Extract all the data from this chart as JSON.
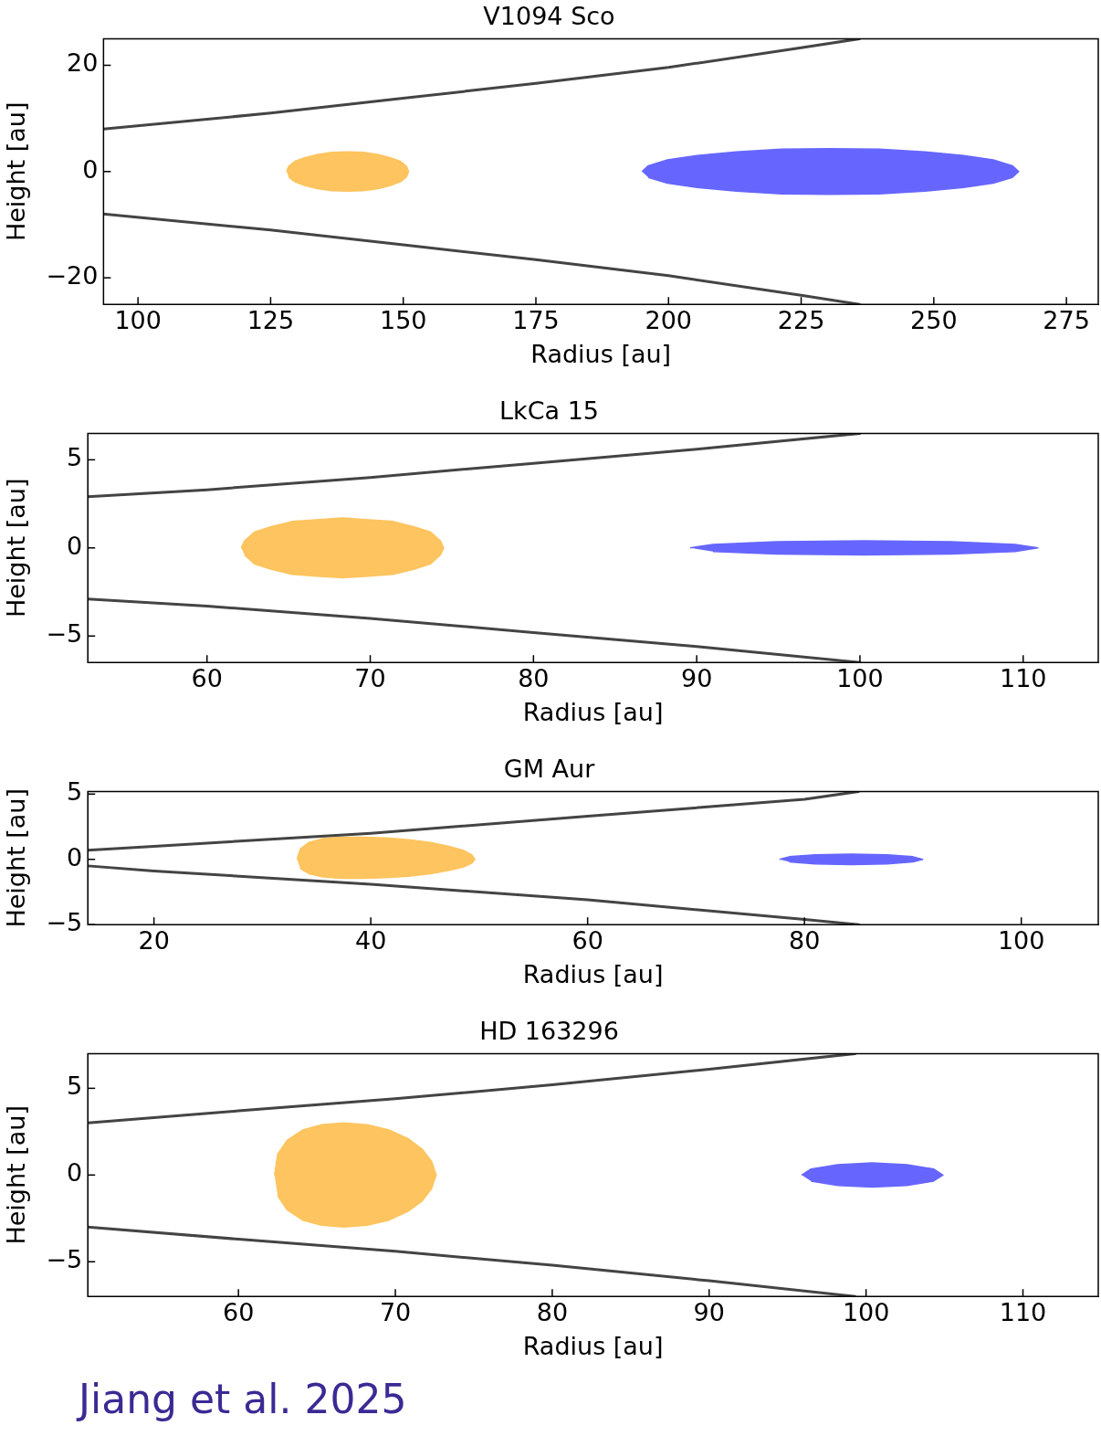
{
  "chart_data": [
    {
      "type": "line",
      "title": "V1094 Sco",
      "xlabel": "Radius [au]",
      "ylabel": "Height [au]",
      "xlim": [
        93.5,
        281
      ],
      "xticks": [
        100,
        125,
        150,
        175,
        200,
        225,
        250,
        275
      ],
      "ylim": [
        -25,
        25
      ],
      "yticks": [
        -20,
        0,
        20
      ],
      "grid": false,
      "series": [
        {
          "type": "line",
          "color": "#444444",
          "x": [
            93.5,
            125,
            150,
            175,
            200,
            225,
            236
          ],
          "values": [
            8,
            11,
            13.8,
            16.6,
            19.6,
            23.3,
            25
          ]
        },
        {
          "type": "line",
          "color": "#444444",
          "x": [
            93.5,
            125,
            150,
            175,
            200,
            225,
            236
          ],
          "values": [
            -8,
            -11,
            -13.8,
            -16.6,
            -19.6,
            -23.3,
            -25
          ]
        },
        {
          "type": "area",
          "color": "#fdc45f",
          "x": [
            128,
            128.4,
            129.5,
            131.4,
            133.8,
            136.5,
            139.5,
            142.5,
            145.3,
            147.6,
            149.5,
            150.6,
            151,
            150.6,
            149.5,
            147.6,
            145.3,
            142.5,
            139.5,
            136.5,
            133.8,
            131.4,
            129.5,
            128.4
          ],
          "values": [
            0,
            1,
            1.9,
            2.6,
            3.2,
            3.6,
            3.7,
            3.6,
            3.2,
            2.6,
            1.9,
            1,
            0,
            -1,
            -1.9,
            -2.6,
            -3.2,
            -3.6,
            -3.7,
            -3.6,
            -3.2,
            -2.6,
            -1.9,
            -1
          ]
        },
        {
          "type": "area",
          "color": "#6666ff",
          "x": [
            195,
            196.2,
            199.8,
            205.4,
            212.8,
            221.3,
            230.5,
            239.7,
            248.3,
            255.6,
            261.2,
            264.8,
            266,
            264.8,
            261.2,
            255.6,
            248.3,
            239.7,
            230.5,
            221.3,
            212.8,
            205.4,
            199.8,
            196.2
          ],
          "values": [
            0,
            1.1,
            2.2,
            3,
            3.7,
            4.2,
            4.3,
            4.2,
            3.7,
            3,
            2.2,
            1.1,
            0,
            -1.1,
            -2.2,
            -3,
            -3.7,
            -4.2,
            -4.3,
            -4.2,
            -3.7,
            -3,
            -2.2,
            -1.1
          ]
        }
      ]
    },
    {
      "type": "line",
      "title": "LkCa 15",
      "xlabel": "Radius [au]",
      "ylabel": "Height [au]",
      "xlim": [
        52.7,
        114.6
      ],
      "xticks": [
        60,
        70,
        80,
        90,
        100,
        110
      ],
      "ylim": [
        -6.5,
        6.5
      ],
      "yticks": [
        -5,
        0,
        5
      ],
      "grid": false,
      "series": [
        {
          "type": "line",
          "color": "#444444",
          "x": [
            52.7,
            60,
            70,
            80,
            90,
            100
          ],
          "values": [
            2.9,
            3.3,
            4,
            4.8,
            5.6,
            6.5
          ]
        },
        {
          "type": "line",
          "color": "#444444",
          "x": [
            52.7,
            60,
            70,
            80,
            90,
            100
          ],
          "values": [
            -2.9,
            -3.3,
            -4,
            -4.8,
            -5.6,
            -6.5
          ]
        },
        {
          "type": "area",
          "color": "#fdc45f",
          "x": [
            62.1,
            62.3,
            62.9,
            63.9,
            65.2,
            66.7,
            68.3,
            69.9,
            71.4,
            72.7,
            73.7,
            74.3,
            74.5,
            74.3,
            73.7,
            72.7,
            71.4,
            69.9,
            68.3,
            66.7,
            65.2,
            63.9,
            62.9,
            62.3
          ],
          "values": [
            0,
            0.4,
            0.9,
            1.2,
            1.5,
            1.6,
            1.7,
            1.6,
            1.5,
            1.2,
            0.9,
            0.4,
            0,
            -0.4,
            -0.9,
            -1.2,
            -1.5,
            -1.6,
            -1.7,
            -1.6,
            -1.5,
            -1.2,
            -0.9,
            -0.4
          ]
        },
        {
          "type": "area",
          "color": "#6666ff",
          "x": [
            89.6,
            91,
            94.9,
            100.25,
            105.6,
            109.5,
            110.9,
            109.5,
            105.6,
            100.25,
            94.9,
            91
          ],
          "values": [
            0,
            0.2,
            0.35,
            0.4,
            0.35,
            0.2,
            0,
            -0.2,
            -0.35,
            -0.4,
            -0.35,
            -0.2
          ]
        }
      ]
    },
    {
      "type": "line",
      "title": "GM Aur",
      "xlabel": "Radius [au]",
      "ylabel": "Height [au]",
      "xlim": [
        13.9,
        107.1
      ],
      "xticks": [
        20,
        40,
        60,
        80,
        100
      ],
      "ylim": [
        -5,
        5.2
      ],
      "yticks": [
        -5,
        0,
        5
      ],
      "grid": false,
      "series": [
        {
          "type": "line",
          "color": "#444444",
          "x": [
            13.9,
            20,
            40,
            60,
            80,
            85
          ],
          "values": [
            0.7,
            1,
            2,
            3.3,
            4.6,
            5.2
          ]
        },
        {
          "type": "line",
          "color": "#444444",
          "x": [
            13.9,
            20,
            40,
            60,
            80,
            85
          ],
          "values": [
            -0.5,
            -0.9,
            -1.9,
            -3.1,
            -4.6,
            -5
          ]
        },
        {
          "type": "area",
          "color": "#fdc45f",
          "x": [
            33.2,
            33.5,
            34.3,
            35.6,
            37.3,
            39.3,
            41.4,
            43.5,
            45.5,
            47.2,
            48.5,
            49.3,
            49.6,
            49.3,
            48.5,
            47.2,
            45.5,
            43.5,
            41.4,
            39.3,
            37.3,
            35.6,
            34.3,
            33.5
          ],
          "values": [
            0,
            0.8,
            1.3,
            1.6,
            1.7,
            1.7,
            1.65,
            1.5,
            1.3,
            1,
            0.7,
            0.35,
            0,
            -0.3,
            -0.6,
            -0.85,
            -1.1,
            -1.3,
            -1.4,
            -1.45,
            -1.45,
            -1.35,
            -1.1,
            -0.7
          ]
        },
        {
          "type": "area",
          "color": "#6666ff",
          "x": [
            77.7,
            78.6,
            81,
            84.3,
            87.6,
            90,
            90.9,
            90,
            87.6,
            84.3,
            81,
            78.6
          ],
          "values": [
            0,
            0.2,
            0.35,
            0.4,
            0.35,
            0.2,
            0,
            -0.2,
            -0.35,
            -0.4,
            -0.35,
            -0.2
          ]
        }
      ]
    },
    {
      "type": "line",
      "title": "HD 163296",
      "xlabel": "Radius [au]",
      "ylabel": "Height [au]",
      "xlim": [
        50.4,
        114.8
      ],
      "xticks": [
        60,
        70,
        80,
        90,
        100,
        110
      ],
      "ylim": [
        -7,
        7
      ],
      "yticks": [
        -5,
        0,
        5
      ],
      "grid": false,
      "annotations": [
        "Jiang et al. 2025"
      ],
      "series": [
        {
          "type": "line",
          "color": "#444444",
          "x": [
            50.4,
            60,
            70,
            80,
            90,
            99.3
          ],
          "values": [
            3,
            3.7,
            4.4,
            5.2,
            6.1,
            7
          ]
        },
        {
          "type": "line",
          "color": "#444444",
          "x": [
            50.4,
            60,
            70,
            80,
            90,
            99.3
          ],
          "values": [
            -3,
            -3.7,
            -4.4,
            -5.2,
            -6.1,
            -7
          ]
        },
        {
          "type": "area",
          "color": "#fdc45f",
          "x": [
            62.3,
            62.5,
            63.1,
            64.1,
            65.3,
            66.7,
            68.2,
            69.6,
            70.8,
            71.7,
            72.3,
            72.6,
            72.3,
            71.7,
            70.8,
            69.6,
            68.2,
            66.7,
            65.3,
            64.1,
            63.1,
            62.5
          ],
          "values": [
            0,
            1.2,
            2,
            2.6,
            2.9,
            3,
            2.9,
            2.6,
            2.1,
            1.5,
            0.8,
            0,
            -0.8,
            -1.5,
            -2.1,
            -2.6,
            -2.9,
            -3,
            -2.9,
            -2.6,
            -2,
            -1.2
          ]
        },
        {
          "type": "area",
          "color": "#6666ff",
          "x": [
            95.9,
            96.5,
            98.2,
            100.4,
            102.6,
            104.3,
            104.9,
            104.3,
            102.6,
            100.4,
            98.2,
            96.5
          ],
          "values": [
            0,
            0.35,
            0.6,
            0.7,
            0.6,
            0.35,
            0,
            -0.35,
            -0.6,
            -0.7,
            -0.6,
            -0.35
          ]
        }
      ]
    }
  ]
}
